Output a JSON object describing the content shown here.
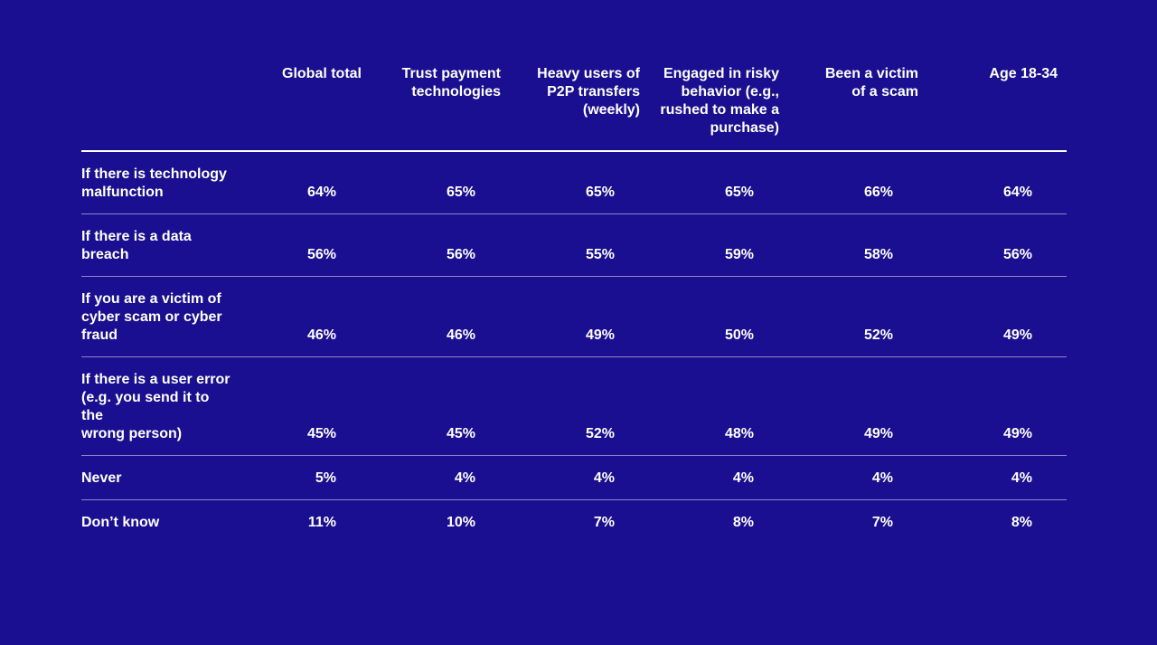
{
  "colors": {
    "background": "#190F90",
    "text": "#FFFFFF",
    "header_rule": "#FFFFFF",
    "row_rule": "#8C8CC8"
  },
  "table": {
    "columns": [
      {
        "label": "Global total"
      },
      {
        "label": "Trust payment\ntechnologies"
      },
      {
        "label": "Heavy users of\nP2P transfers\n(weekly)"
      },
      {
        "label": "Engaged in risky\nbehavior (e.g.,\nrushed to make a\npurchase)"
      },
      {
        "label": "Been a victim\nof a scam"
      },
      {
        "label": "Age 18-34"
      }
    ],
    "rows": [
      {
        "label": "If there is technology\nmalfunction",
        "values": [
          "64%",
          "65%",
          "65%",
          "65%",
          "66%",
          "64%"
        ]
      },
      {
        "label": "If there is a data\nbreach",
        "values": [
          "56%",
          "56%",
          "55%",
          "59%",
          "58%",
          "56%"
        ]
      },
      {
        "label": "If you are a victim of\ncyber scam or cyber\nfraud",
        "values": [
          "46%",
          "46%",
          "49%",
          "50%",
          "52%",
          "49%"
        ]
      },
      {
        "label": "If there is a user error\n(e.g. you send it to the\nwrong person)",
        "values": [
          "45%",
          "45%",
          "52%",
          "48%",
          "49%",
          "49%"
        ]
      },
      {
        "label": "Never",
        "values": [
          "5%",
          "4%",
          "4%",
          "4%",
          "4%",
          "4%"
        ]
      },
      {
        "label": "Don’t know",
        "values": [
          "11%",
          "10%",
          "7%",
          "8%",
          "7%",
          "8%"
        ]
      }
    ]
  },
  "chart_data": {
    "type": "table",
    "unit": "percent",
    "categories": [
      "Global total",
      "Trust payment technologies",
      "Heavy users of P2P transfers (weekly)",
      "Engaged in risky behavior (e.g., rushed to make a purchase)",
      "Been a victim of a scam",
      "Age 18-34"
    ],
    "series": [
      {
        "name": "If there is technology malfunction",
        "values": [
          64,
          65,
          65,
          65,
          66,
          64
        ]
      },
      {
        "name": "If there is a data breach",
        "values": [
          56,
          56,
          55,
          59,
          58,
          56
        ]
      },
      {
        "name": "If you are a victim of cyber scam or cyber fraud",
        "values": [
          46,
          46,
          49,
          50,
          52,
          49
        ]
      },
      {
        "name": "If there is a user error (e.g. you send it to the wrong person)",
        "values": [
          45,
          45,
          52,
          48,
          49,
          49
        ]
      },
      {
        "name": "Never",
        "values": [
          5,
          4,
          4,
          4,
          4,
          4
        ]
      },
      {
        "name": "Don’t know",
        "values": [
          11,
          10,
          7,
          8,
          7,
          8
        ]
      }
    ]
  }
}
